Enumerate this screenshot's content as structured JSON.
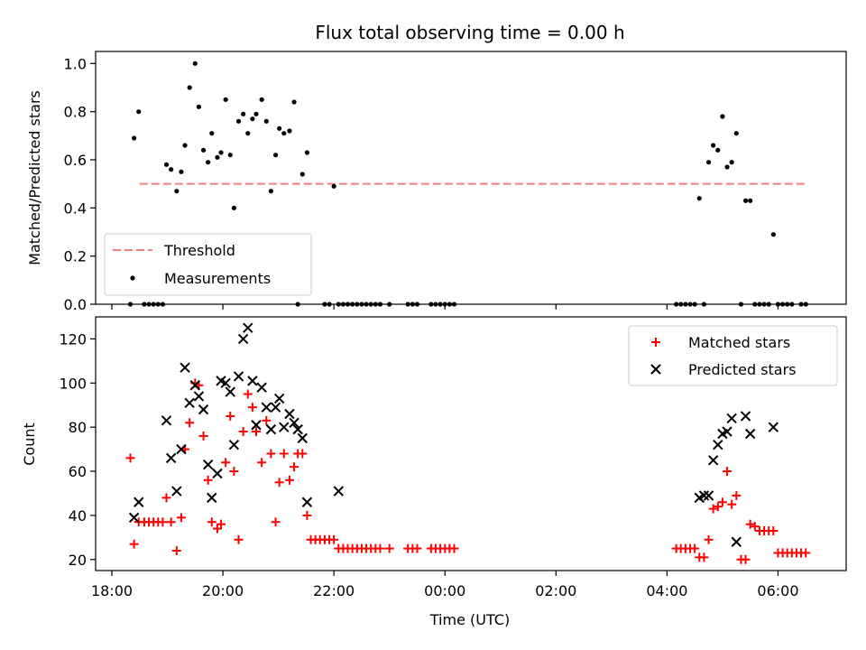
{
  "chart_data": [
    {
      "type": "scatter",
      "title": "Flux total observing time = 0.00 h",
      "xlabel": "",
      "ylabel": "Matched/Predicted stars",
      "xlim": [
        "18:00",
        "07:00"
      ],
      "ylim": [
        0,
        1.05
      ],
      "yticks": [
        0.0,
        0.2,
        0.4,
        0.6,
        0.8,
        1.0
      ],
      "ytick_labels": [
        "0.0",
        "0.2",
        "0.4",
        "0.6",
        "0.8",
        "1.0"
      ],
      "legend_position": "lower-left",
      "threshold": {
        "name": "Threshold",
        "y": 0.5,
        "x_start": "18:30",
        "x_end": "06:30",
        "color": "#f08080"
      },
      "series": [
        {
          "name": "Measurements",
          "color": "#000000",
          "points": [
            [
              "18:20",
              0.0
            ],
            [
              "18:24",
              0.69
            ],
            [
              "18:29",
              0.8
            ],
            [
              "18:35",
              0.0
            ],
            [
              "18:40",
              0.0
            ],
            [
              "18:45",
              0.0
            ],
            [
              "18:50",
              0.0
            ],
            [
              "18:55",
              0.0
            ],
            [
              "18:59",
              0.58
            ],
            [
              "19:04",
              0.56
            ],
            [
              "19:10",
              0.47
            ],
            [
              "19:15",
              0.55
            ],
            [
              "19:19",
              0.66
            ],
            [
              "19:24",
              0.9
            ],
            [
              "19:30",
              1.0
            ],
            [
              "19:34",
              0.82
            ],
            [
              "19:39",
              0.64
            ],
            [
              "19:44",
              0.59
            ],
            [
              "19:48",
              0.71
            ],
            [
              "19:54",
              0.61
            ],
            [
              "19:58",
              0.63
            ],
            [
              "20:03",
              0.85
            ],
            [
              "20:08",
              0.62
            ],
            [
              "20:12",
              0.4
            ],
            [
              "20:17",
              0.76
            ],
            [
              "20:22",
              0.79
            ],
            [
              "20:27",
              0.71
            ],
            [
              "20:32",
              0.77
            ],
            [
              "20:36",
              0.79
            ],
            [
              "20:42",
              0.85
            ],
            [
              "20:47",
              0.76
            ],
            [
              "20:52",
              0.47
            ],
            [
              "20:57",
              0.62
            ],
            [
              "21:01",
              0.73
            ],
            [
              "21:06",
              0.71
            ],
            [
              "21:12",
              0.72
            ],
            [
              "21:17",
              0.84
            ],
            [
              "21:21",
              0.0
            ],
            [
              "21:26",
              0.54
            ],
            [
              "21:31",
              0.63
            ],
            [
              "21:50",
              0.0
            ],
            [
              "21:55",
              0.0
            ],
            [
              "22:00",
              0.49
            ],
            [
              "22:05",
              0.0
            ],
            [
              "22:10",
              0.0
            ],
            [
              "22:15",
              0.0
            ],
            [
              "22:20",
              0.0
            ],
            [
              "22:25",
              0.0
            ],
            [
              "22:30",
              0.0
            ],
            [
              "22:35",
              0.0
            ],
            [
              "22:40",
              0.0
            ],
            [
              "22:45",
              0.0
            ],
            [
              "22:50",
              0.0
            ],
            [
              "23:00",
              0.0
            ],
            [
              "23:20",
              0.0
            ],
            [
              "23:25",
              0.0
            ],
            [
              "23:30",
              0.0
            ],
            [
              "23:45",
              0.0
            ],
            [
              "23:50",
              0.0
            ],
            [
              "23:55",
              0.0
            ],
            [
              "00:00",
              0.0
            ],
            [
              "00:05",
              0.0
            ],
            [
              "00:10",
              0.0
            ],
            [
              "04:10",
              0.0
            ],
            [
              "04:15",
              0.0
            ],
            [
              "04:20",
              0.0
            ],
            [
              "04:25",
              0.0
            ],
            [
              "04:30",
              0.0
            ],
            [
              "04:35",
              0.44
            ],
            [
              "04:40",
              0.0
            ],
            [
              "04:45",
              0.59
            ],
            [
              "04:50",
              0.66
            ],
            [
              "04:55",
              0.64
            ],
            [
              "05:00",
              0.78
            ],
            [
              "05:05",
              0.57
            ],
            [
              "05:10",
              0.59
            ],
            [
              "05:15",
              0.71
            ],
            [
              "05:20",
              0.0
            ],
            [
              "05:25",
              0.43
            ],
            [
              "05:30",
              0.43
            ],
            [
              "05:35",
              0.0
            ],
            [
              "05:40",
              0.0
            ],
            [
              "05:45",
              0.0
            ],
            [
              "05:50",
              0.0
            ],
            [
              "05:55",
              0.29
            ],
            [
              "06:00",
              0.0
            ],
            [
              "06:05",
              0.0
            ],
            [
              "06:10",
              0.0
            ],
            [
              "06:15",
              0.0
            ],
            [
              "06:25",
              0.0
            ],
            [
              "06:30",
              0.0
            ]
          ]
        }
      ],
      "grid": false
    },
    {
      "type": "scatter",
      "title": "",
      "xlabel": "Time (UTC)",
      "ylabel": "Count",
      "xlim": [
        "18:00",
        "07:00"
      ],
      "xticks": [
        "18:00",
        "20:00",
        "22:00",
        "00:00",
        "02:00",
        "04:00",
        "06:00"
      ],
      "ylim": [
        15,
        130
      ],
      "yticks": [
        20,
        40,
        60,
        80,
        100,
        120
      ],
      "legend_position": "top-right",
      "series": [
        {
          "name": "Matched stars",
          "marker": "+",
          "color": "#ff0000",
          "points": [
            [
              "18:20",
              66
            ],
            [
              "18:24",
              27
            ],
            [
              "18:29",
              37
            ],
            [
              "18:35",
              37
            ],
            [
              "18:40",
              37
            ],
            [
              "18:45",
              37
            ],
            [
              "18:50",
              37
            ],
            [
              "18:55",
              37
            ],
            [
              "18:59",
              48
            ],
            [
              "19:04",
              37
            ],
            [
              "19:10",
              24
            ],
            [
              "19:15",
              39
            ],
            [
              "19:19",
              70
            ],
            [
              "19:24",
              82
            ],
            [
              "19:30",
              100
            ],
            [
              "19:34",
              99
            ],
            [
              "19:39",
              76
            ],
            [
              "19:44",
              56
            ],
            [
              "19:48",
              37
            ],
            [
              "19:54",
              34
            ],
            [
              "19:58",
              36
            ],
            [
              "20:03",
              64
            ],
            [
              "20:08",
              85
            ],
            [
              "20:12",
              60
            ],
            [
              "20:17",
              29
            ],
            [
              "20:22",
              78
            ],
            [
              "20:27",
              95
            ],
            [
              "20:32",
              89
            ],
            [
              "20:36",
              78
            ],
            [
              "20:42",
              64
            ],
            [
              "20:47",
              83
            ],
            [
              "20:52",
              68
            ],
            [
              "20:57",
              37
            ],
            [
              "21:01",
              55
            ],
            [
              "21:06",
              68
            ],
            [
              "21:12",
              56
            ],
            [
              "21:17",
              62
            ],
            [
              "21:21",
              68
            ],
            [
              "21:26",
              68
            ],
            [
              "21:31",
              40
            ],
            [
              "21:35",
              29
            ],
            [
              "21:40",
              29
            ],
            [
              "21:45",
              29
            ],
            [
              "21:50",
              29
            ],
            [
              "21:55",
              29
            ],
            [
              "22:00",
              29
            ],
            [
              "22:05",
              25
            ],
            [
              "22:10",
              25
            ],
            [
              "22:15",
              25
            ],
            [
              "22:20",
              25
            ],
            [
              "22:25",
              25
            ],
            [
              "22:30",
              25
            ],
            [
              "22:35",
              25
            ],
            [
              "22:40",
              25
            ],
            [
              "22:45",
              25
            ],
            [
              "22:50",
              25
            ],
            [
              "23:00",
              25
            ],
            [
              "23:20",
              25
            ],
            [
              "23:25",
              25
            ],
            [
              "23:30",
              25
            ],
            [
              "23:45",
              25
            ],
            [
              "23:50",
              25
            ],
            [
              "23:55",
              25
            ],
            [
              "00:00",
              25
            ],
            [
              "00:05",
              25
            ],
            [
              "00:10",
              25
            ],
            [
              "04:10",
              25
            ],
            [
              "04:15",
              25
            ],
            [
              "04:20",
              25
            ],
            [
              "04:25",
              25
            ],
            [
              "04:30",
              25
            ],
            [
              "04:35",
              21
            ],
            [
              "04:40",
              21
            ],
            [
              "04:45",
              29
            ],
            [
              "04:50",
              43
            ],
            [
              "04:55",
              44
            ],
            [
              "05:00",
              46
            ],
            [
              "05:05",
              60
            ],
            [
              "05:10",
              45
            ],
            [
              "05:15",
              49
            ],
            [
              "05:20",
              20
            ],
            [
              "05:25",
              20
            ],
            [
              "05:30",
              36
            ],
            [
              "05:35",
              35
            ],
            [
              "05:40",
              33
            ],
            [
              "05:45",
              33
            ],
            [
              "05:50",
              33
            ],
            [
              "05:55",
              33
            ],
            [
              "06:00",
              23
            ],
            [
              "06:05",
              23
            ],
            [
              "06:10",
              23
            ],
            [
              "06:15",
              23
            ],
            [
              "06:20",
              23
            ],
            [
              "06:25",
              23
            ],
            [
              "06:30",
              23
            ]
          ]
        },
        {
          "name": "Predicted stars",
          "marker": "x",
          "color": "#000000",
          "points": [
            [
              "18:24",
              39
            ],
            [
              "18:29",
              46
            ],
            [
              "18:59",
              83
            ],
            [
              "19:04",
              66
            ],
            [
              "19:10",
              51
            ],
            [
              "19:15",
              70
            ],
            [
              "19:19",
              107
            ],
            [
              "19:24",
              91
            ],
            [
              "19:30",
              99
            ],
            [
              "19:34",
              94
            ],
            [
              "19:39",
              88
            ],
            [
              "19:44",
              63
            ],
            [
              "19:48",
              48
            ],
            [
              "19:54",
              59
            ],
            [
              "19:58",
              101
            ],
            [
              "20:03",
              100
            ],
            [
              "20:08",
              96
            ],
            [
              "20:12",
              72
            ],
            [
              "20:17",
              103
            ],
            [
              "20:22",
              120
            ],
            [
              "20:27",
              125
            ],
            [
              "20:32",
              101
            ],
            [
              "20:36",
              81
            ],
            [
              "20:42",
              98
            ],
            [
              "20:47",
              89
            ],
            [
              "20:52",
              79
            ],
            [
              "20:57",
              89
            ],
            [
              "21:01",
              93
            ],
            [
              "21:06",
              80
            ],
            [
              "21:12",
              86
            ],
            [
              "21:17",
              82
            ],
            [
              "21:21",
              79
            ],
            [
              "21:26",
              75
            ],
            [
              "21:31",
              46
            ],
            [
              "22:05",
              51
            ],
            [
              "04:35",
              48
            ],
            [
              "04:40",
              49
            ],
            [
              "04:45",
              49
            ],
            [
              "04:50",
              65
            ],
            [
              "04:55",
              72
            ],
            [
              "05:00",
              77
            ],
            [
              "05:05",
              78
            ],
            [
              "05:10",
              84
            ],
            [
              "05:15",
              28
            ],
            [
              "05:25",
              85
            ],
            [
              "05:30",
              77
            ],
            [
              "05:55",
              80
            ]
          ]
        }
      ],
      "grid": false
    }
  ]
}
